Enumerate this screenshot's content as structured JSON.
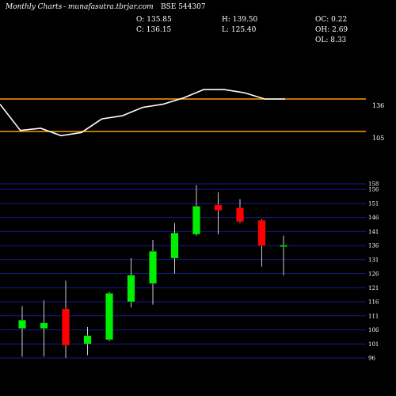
{
  "header": {
    "brand": "Monthly Charts",
    "site": "- munafasutra.tbrjar.com",
    "symbol": "BSE 544307",
    "open": "O: 135.85",
    "close": "C: 136.15",
    "high": "H: 139.50",
    "low": "L: 125.40",
    "oc": "OC: 0.22",
    "oh": "OH: 2.69",
    "ol": "OL: 8.33"
  },
  "colors": {
    "background": "#000000",
    "up": "#00ee00",
    "down": "#ff0000",
    "grid": "#1a1a8c",
    "level_line": "#ff9900",
    "indicator": "#ffffff"
  },
  "chart_data": [
    {
      "type": "line",
      "panel": "indicator",
      "levels": [
        136,
        105
      ],
      "y_ticks": [
        "136",
        "105"
      ],
      "values": [
        131,
        106,
        108,
        101,
        104,
        117,
        120,
        128,
        131,
        137,
        145,
        145,
        142,
        136,
        136
      ]
    },
    {
      "type": "candlestick",
      "panel": "price",
      "y_ticks": [
        158,
        156,
        151,
        146,
        141,
        136,
        131,
        126,
        121,
        116,
        111,
        106,
        101,
        96
      ],
      "ylim": [
        95,
        160
      ],
      "candles": [
        {
          "o": 106.5,
          "h": 114.5,
          "l": 96.5,
          "c": 109.5
        },
        {
          "o": 106.5,
          "h": 116.5,
          "l": 96.5,
          "c": 108.5
        },
        {
          "o": 113.5,
          "h": 123.5,
          "l": 96.0,
          "c": 100.5
        },
        {
          "o": 101.0,
          "h": 107.0,
          "l": 97.0,
          "c": 104.0
        },
        {
          "o": 102.5,
          "h": 119.5,
          "l": 102.0,
          "c": 119.0
        },
        {
          "o": 116.0,
          "h": 131.5,
          "l": 114.0,
          "c": 125.5
        },
        {
          "o": 122.5,
          "h": 138.0,
          "l": 115.0,
          "c": 134.0
        },
        {
          "o": 131.5,
          "h": 144.0,
          "l": 126.0,
          "c": 140.5
        },
        {
          "o": 140.0,
          "h": 157.5,
          "l": 139.5,
          "c": 150.0
        },
        {
          "o": 150.5,
          "h": 155.0,
          "l": 140.0,
          "c": 148.5
        },
        {
          "o": 149.5,
          "h": 152.5,
          "l": 144.0,
          "c": 144.5
        },
        {
          "o": 145.0,
          "h": 145.5,
          "l": 128.5,
          "c": 136.0
        },
        {
          "o": 135.85,
          "h": 139.5,
          "l": 125.4,
          "c": 136.15
        }
      ]
    }
  ]
}
